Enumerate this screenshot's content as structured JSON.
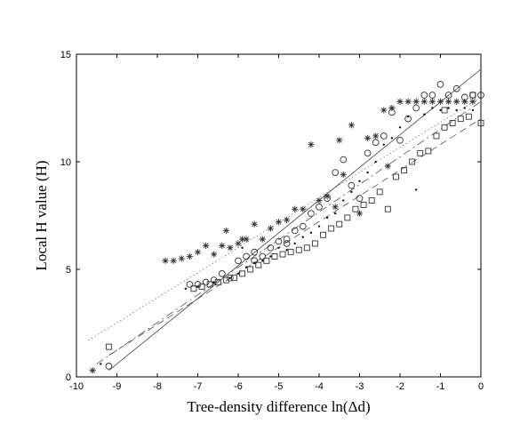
{
  "chart_data": {
    "type": "scatter",
    "title": "",
    "xlabel": "Tree-density difference ln(Δd)",
    "ylabel": "Local H value (H)",
    "xlim": [
      -10,
      0
    ],
    "ylim": [
      0,
      15
    ],
    "xticks": [
      -10,
      -9,
      -8,
      -7,
      -6,
      -5,
      -4,
      -3,
      -2,
      -1,
      0
    ],
    "yticks": [
      0,
      5,
      10,
      15
    ],
    "grid": false,
    "legend": "none",
    "series": [
      {
        "marker": "asterisk",
        "fit_line": "dotted",
        "fit": [
          [
            -9.7,
            1.7
          ],
          [
            0,
            13.0
          ]
        ],
        "points": [
          [
            -9.6,
            0.3
          ],
          [
            -7.8,
            5.4
          ],
          [
            -7.6,
            5.4
          ],
          [
            -7.4,
            5.5
          ],
          [
            -7.2,
            5.6
          ],
          [
            -7.0,
            5.8
          ],
          [
            -6.8,
            6.1
          ],
          [
            -6.6,
            5.7
          ],
          [
            -6.4,
            6.1
          ],
          [
            -6.2,
            6.0
          ],
          [
            -6.0,
            6.2
          ],
          [
            -5.9,
            6.4
          ],
          [
            -5.8,
            6.4
          ],
          [
            -5.6,
            7.1
          ],
          [
            -5.4,
            6.4
          ],
          [
            -5.2,
            6.9
          ],
          [
            -5.0,
            7.2
          ],
          [
            -4.8,
            7.3
          ],
          [
            -4.6,
            7.8
          ],
          [
            -4.4,
            7.8
          ],
          [
            -4.2,
            10.8
          ],
          [
            -4.0,
            8.2
          ],
          [
            -3.8,
            8.4
          ],
          [
            -3.6,
            7.9
          ],
          [
            -3.5,
            11.0
          ],
          [
            -3.4,
            9.4
          ],
          [
            -3.2,
            11.7
          ],
          [
            -3.0,
            7.6
          ],
          [
            -2.8,
            11.1
          ],
          [
            -2.6,
            11.2
          ],
          [
            -2.4,
            12.4
          ],
          [
            -2.2,
            12.5
          ],
          [
            -2.0,
            12.8
          ],
          [
            -1.8,
            12.8
          ],
          [
            -1.6,
            12.8
          ],
          [
            -1.4,
            12.8
          ],
          [
            -1.2,
            12.8
          ],
          [
            -1.0,
            12.8
          ],
          [
            -0.8,
            12.8
          ],
          [
            -0.6,
            12.8
          ],
          [
            -0.4,
            12.8
          ],
          [
            -0.2,
            12.8
          ],
          [
            -2.3,
            9.8
          ],
          [
            -6.3,
            6.8
          ]
        ]
      },
      {
        "marker": "circle",
        "fit_line": "solid",
        "fit": [
          [
            -9.2,
            0.3
          ],
          [
            0,
            14.3
          ]
        ],
        "points": [
          [
            -9.2,
            0.5
          ],
          [
            -7.2,
            4.3
          ],
          [
            -7.0,
            4.3
          ],
          [
            -6.8,
            4.4
          ],
          [
            -6.6,
            4.5
          ],
          [
            -6.4,
            4.8
          ],
          [
            -6.2,
            4.6
          ],
          [
            -6.0,
            5.4
          ],
          [
            -5.8,
            5.6
          ],
          [
            -5.6,
            5.8
          ],
          [
            -5.4,
            5.6
          ],
          [
            -5.2,
            6.0
          ],
          [
            -5.0,
            6.3
          ],
          [
            -4.8,
            6.2
          ],
          [
            -4.6,
            6.8
          ],
          [
            -4.4,
            7.0
          ],
          [
            -4.2,
            7.6
          ],
          [
            -4.0,
            7.9
          ],
          [
            -3.8,
            8.3
          ],
          [
            -3.6,
            9.5
          ],
          [
            -3.4,
            10.1
          ],
          [
            -3.2,
            8.9
          ],
          [
            -3.0,
            8.3
          ],
          [
            -2.8,
            10.4
          ],
          [
            -2.6,
            10.9
          ],
          [
            -2.4,
            11.2
          ],
          [
            -2.2,
            12.3
          ],
          [
            -2.0,
            11.0
          ],
          [
            -1.8,
            12.0
          ],
          [
            -1.6,
            12.5
          ],
          [
            -1.4,
            13.1
          ],
          [
            -1.2,
            13.1
          ],
          [
            -1.0,
            13.6
          ],
          [
            -0.8,
            13.1
          ],
          [
            -0.6,
            13.4
          ],
          [
            -0.4,
            13.0
          ],
          [
            -0.2,
            13.1
          ],
          [
            0.0,
            13.1
          ],
          [
            -5.6,
            5.4
          ],
          [
            -4.8,
            6.4
          ]
        ]
      },
      {
        "marker": "dot",
        "fit_line": "dashdot",
        "fit": [
          [
            -9.5,
            0.6
          ],
          [
            0,
            12.8
          ]
        ],
        "points": [
          [
            -9.4,
            0.6
          ],
          [
            -7.3,
            4.1
          ],
          [
            -7.0,
            4.2
          ],
          [
            -6.6,
            4.4
          ],
          [
            -6.2,
            4.6
          ],
          [
            -6.0,
            4.8
          ],
          [
            -5.8,
            5.1
          ],
          [
            -5.6,
            5.3
          ],
          [
            -5.4,
            5.4
          ],
          [
            -5.2,
            5.6
          ],
          [
            -5.0,
            6.0
          ],
          [
            -4.8,
            5.9
          ],
          [
            -4.6,
            6.2
          ],
          [
            -4.4,
            6.5
          ],
          [
            -4.2,
            6.7
          ],
          [
            -4.0,
            7.0
          ],
          [
            -3.8,
            7.4
          ],
          [
            -3.6,
            7.6
          ],
          [
            -3.4,
            8.2
          ],
          [
            -3.2,
            8.6
          ],
          [
            -3.0,
            9.1
          ],
          [
            -2.8,
            9.5
          ],
          [
            -2.6,
            10.0
          ],
          [
            -2.4,
            10.8
          ],
          [
            -2.2,
            11.1
          ],
          [
            -2.0,
            11.6
          ],
          [
            -1.8,
            12.1
          ],
          [
            -1.6,
            8.7
          ],
          [
            -1.4,
            12.2
          ],
          [
            -1.2,
            12.5
          ],
          [
            -1.0,
            12.4
          ],
          [
            -0.8,
            12.5
          ],
          [
            -0.6,
            12.4
          ],
          [
            -0.4,
            12.5
          ],
          [
            -0.2,
            12.4
          ],
          [
            -5.9,
            6.0
          ]
        ]
      },
      {
        "marker": "square",
        "fit_line": "dashed",
        "fit": [
          [
            -9.2,
            1.0
          ],
          [
            0,
            12.0
          ]
        ],
        "points": [
          [
            -9.2,
            1.4
          ],
          [
            -7.1,
            4.1
          ],
          [
            -6.9,
            4.2
          ],
          [
            -6.7,
            4.3
          ],
          [
            -6.5,
            4.4
          ],
          [
            -6.3,
            4.5
          ],
          [
            -6.1,
            4.6
          ],
          [
            -5.9,
            4.8
          ],
          [
            -5.7,
            5.0
          ],
          [
            -5.5,
            5.2
          ],
          [
            -5.3,
            5.4
          ],
          [
            -5.1,
            5.6
          ],
          [
            -4.9,
            5.7
          ],
          [
            -4.7,
            5.8
          ],
          [
            -4.5,
            5.9
          ],
          [
            -4.3,
            6.0
          ],
          [
            -4.1,
            6.2
          ],
          [
            -3.9,
            6.6
          ],
          [
            -3.7,
            6.9
          ],
          [
            -3.5,
            7.1
          ],
          [
            -3.3,
            7.4
          ],
          [
            -3.1,
            7.8
          ],
          [
            -2.9,
            8.0
          ],
          [
            -2.7,
            8.2
          ],
          [
            -2.5,
            8.6
          ],
          [
            -2.3,
            7.8
          ],
          [
            -2.1,
            9.3
          ],
          [
            -1.9,
            9.6
          ],
          [
            -1.7,
            10.0
          ],
          [
            -1.5,
            10.4
          ],
          [
            -1.3,
            10.5
          ],
          [
            -1.1,
            11.2
          ],
          [
            -0.9,
            11.6
          ],
          [
            -0.7,
            11.8
          ],
          [
            -0.5,
            12.0
          ],
          [
            -0.3,
            12.1
          ],
          [
            0.0,
            11.8
          ],
          [
            -0.9,
            12.4
          ],
          [
            -0.2,
            13.1
          ]
        ]
      }
    ]
  }
}
